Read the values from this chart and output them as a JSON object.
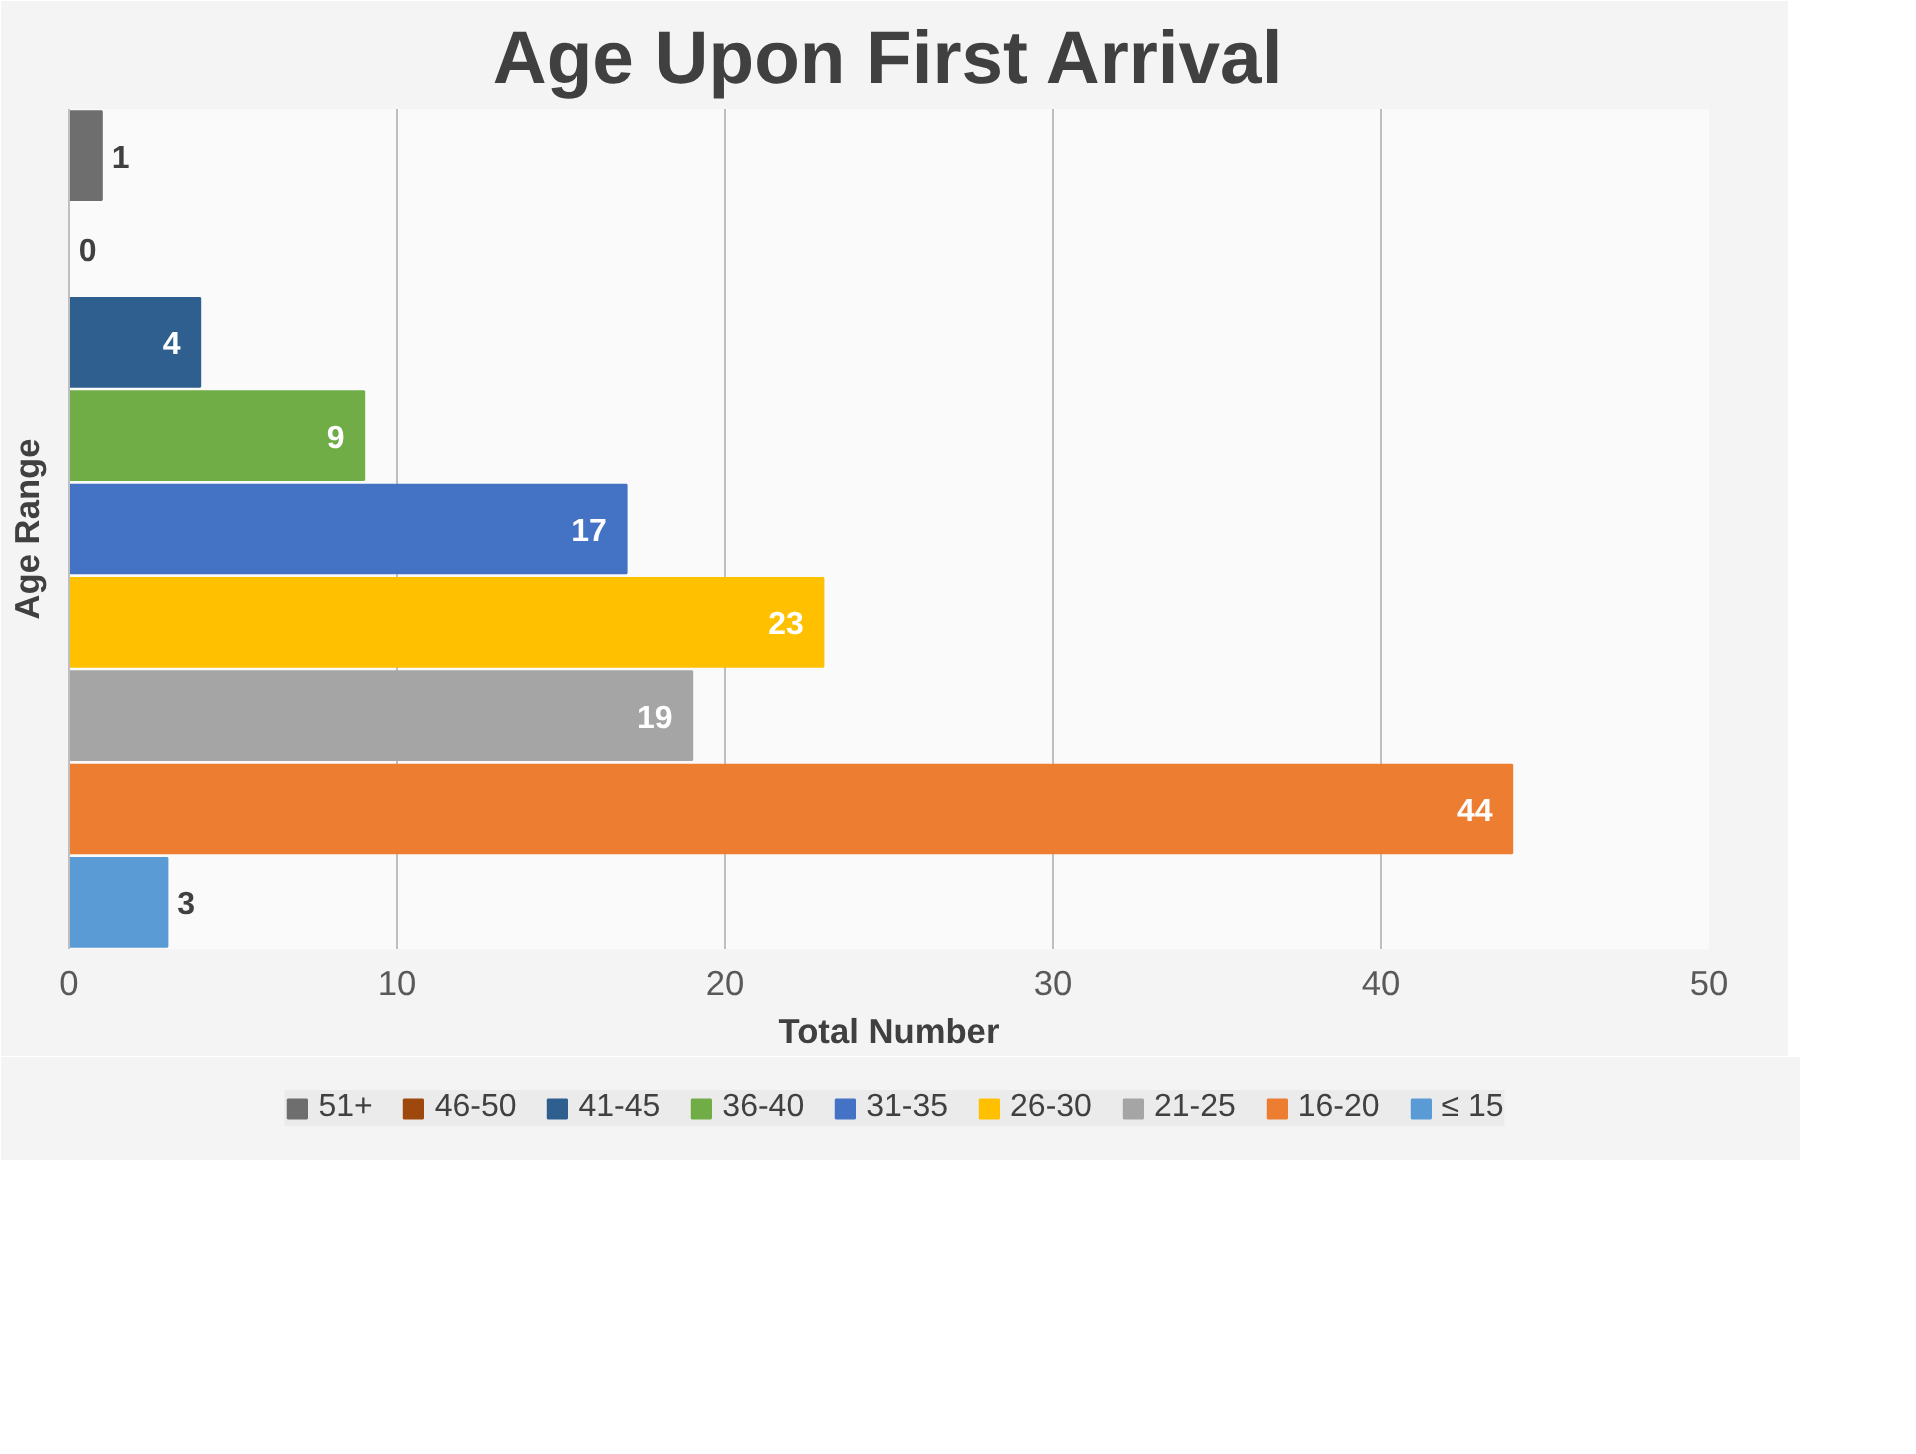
{
  "chart_data": {
    "type": "bar",
    "orientation": "horizontal",
    "stacked": true,
    "title": "Age Upon First Arrival",
    "xlabel": "Total Number",
    "ylabel": "Age Range",
    "categories": [
      null,
      null,
      null,
      null,
      null,
      null,
      null,
      null,
      null
    ],
    "series": [
      {
        "name": "51+",
        "color": "#6e6e6e",
        "values": [
          1,
          null,
          null,
          null,
          null,
          null,
          null,
          null,
          null
        ]
      },
      {
        "name": "46-50",
        "color": "#9e480e",
        "values": [
          null,
          0,
          null,
          null,
          null,
          null,
          null,
          null,
          null
        ]
      },
      {
        "name": "41-45",
        "color": "#2e5f8f",
        "values": [
          null,
          null,
          4,
          null,
          null,
          null,
          null,
          null,
          null
        ]
      },
      {
        "name": "36-40",
        "color": "#70ad47",
        "values": [
          null,
          null,
          null,
          9,
          null,
          null,
          null,
          null,
          null
        ]
      },
      {
        "name": "31-35",
        "color": "#4472c4",
        "values": [
          null,
          null,
          null,
          null,
          17,
          null,
          null,
          null,
          null
        ]
      },
      {
        "name": "26-30",
        "color": "#ffc000",
        "values": [
          null,
          null,
          null,
          null,
          null,
          23,
          null,
          null,
          null
        ]
      },
      {
        "name": "21-25",
        "color": "#a5a5a5",
        "values": [
          null,
          null,
          null,
          null,
          null,
          null,
          19,
          null,
          null
        ]
      },
      {
        "name": "16-20",
        "color": "#ed7d31",
        "values": [
          null,
          null,
          null,
          null,
          null,
          null,
          null,
          44,
          null
        ]
      },
      {
        "name": "≤ 15",
        "color": "#5b9bd5",
        "values": [
          null,
          null,
          null,
          null,
          null,
          null,
          null,
          null,
          3
        ]
      }
    ],
    "xlim": [
      0,
      50
    ],
    "xticks": [
      0,
      10,
      20,
      30,
      40,
      50
    ],
    "grid": "x",
    "legend": "bottom",
    "tick_labels": "x",
    "data_labels": true
  }
}
